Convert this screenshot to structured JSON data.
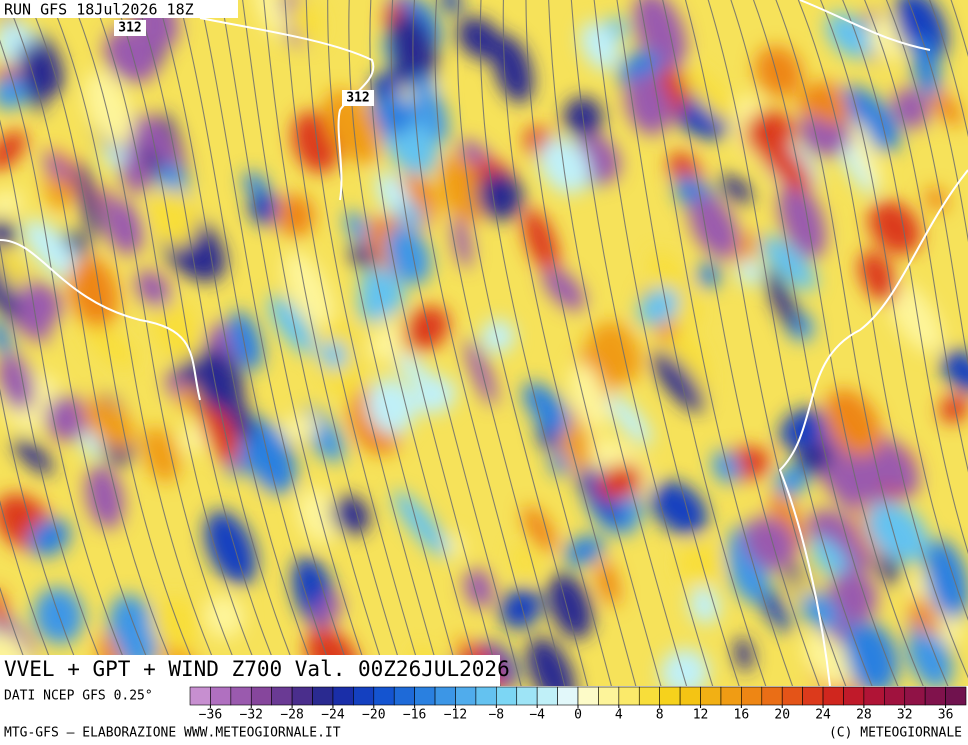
{
  "header": {
    "title": "RUN GFS 18Jul2026 18Z"
  },
  "contour_labels": [
    "312",
    "312"
  ],
  "map_label": "VVEL + GPT + WIND Z700 Val. 00Z26JUL2026",
  "source": "DATI NCEP GFS 0.25°",
  "colorbar": {
    "range": [
      -38,
      38
    ],
    "colors": [
      "#c78fd0",
      "#b070c0",
      "#9a5aae",
      "#86469c",
      "#6a3a94",
      "#4a2e8c",
      "#2a2a90",
      "#1a2ea8",
      "#1440c0",
      "#1454d0",
      "#1e6ad8",
      "#2a80e0",
      "#3c96e6",
      "#50acec",
      "#64c2f0",
      "#7cd6f4",
      "#9ee4f6",
      "#c0f0f8",
      "#e2f8fa",
      "#fdfbc8",
      "#fdf49a",
      "#fbea6a",
      "#f8de3a",
      "#f6d21c",
      "#f4c414",
      "#f2b014",
      "#f09c14",
      "#ee8614",
      "#ea6e16",
      "#e45418",
      "#dc3a1c",
      "#d0261e",
      "#c01a2a",
      "#b01436",
      "#a0123e",
      "#901246",
      "#80124c",
      "#70124e"
    ],
    "ticks": [
      {
        "value": -36,
        "label": "−36"
      },
      {
        "value": -32,
        "label": "−32"
      },
      {
        "value": -28,
        "label": "−28"
      },
      {
        "value": -24,
        "label": "−24"
      },
      {
        "value": -20,
        "label": "−20"
      },
      {
        "value": -16,
        "label": "−16"
      },
      {
        "value": -12,
        "label": "−12"
      },
      {
        "value": -8,
        "label": "−8"
      },
      {
        "value": -4,
        "label": "−4"
      },
      0,
      4,
      8,
      12,
      16,
      20,
      24,
      28,
      32,
      36
    ]
  },
  "footer": {
    "left": "MTG-GFS — ELABORAZIONE WWW.METEOGIORNALE.IT",
    "right": "(C) METEOGIORNALE"
  }
}
